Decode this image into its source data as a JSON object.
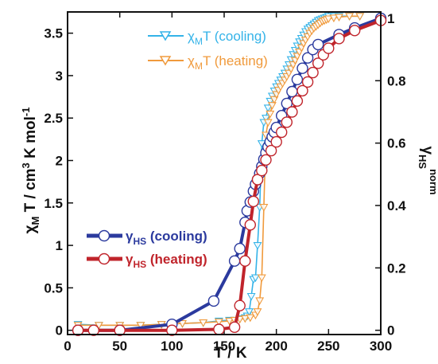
{
  "chart_data": {
    "type": "line",
    "x_axis": {
      "label_main": "T / K",
      "range": [
        0,
        300
      ],
      "ticks": [
        "0",
        "50",
        "100",
        "150",
        "200",
        "250",
        "300"
      ]
    },
    "y_left": {
      "label_chi": "χ",
      "label_M": "M",
      "label_main": " T / cm",
      "label_exp3": "3",
      "label_K": " K mol",
      "label_expm1": "-1",
      "range": [
        -0.05,
        3.75
      ],
      "ticks": [
        "0",
        "0.5",
        "1",
        "1.5",
        "2",
        "2.5",
        "3",
        "3.5"
      ]
    },
    "y_right": {
      "label_gamma": "γ",
      "label_sub": "HS",
      "label_sup": "norm",
      "range": [
        -0.0136,
        1.0204
      ],
      "ticks": [
        "0",
        "0.2",
        "0.4",
        "0.6",
        "0.8",
        "1"
      ]
    },
    "legend_top": [
      {
        "chi": "χ",
        "sub": "M",
        "rest": "T (cooling)",
        "color": "#34b3e8"
      },
      {
        "chi": "χ",
        "sub": "M",
        "rest": "T (heating)",
        "color": "#f09a3c"
      }
    ],
    "legend_bottom": [
      {
        "gamma": "γ",
        "sub": "HS",
        "rest": " (cooling)",
        "color": "#2b3a9e"
      },
      {
        "gamma": "γ",
        "sub": "HS",
        "rest": " (heating)",
        "color": "#c0242b"
      }
    ],
    "series": [
      {
        "name": "χMT (cooling)",
        "axis": "left",
        "color": "#34b3e8",
        "x": [
          10,
          30,
          50,
          70,
          90,
          110,
          130,
          145,
          155,
          160,
          165,
          170,
          172,
          174,
          176,
          178,
          180,
          182,
          184,
          186,
          188,
          190,
          192,
          194,
          196,
          198,
          200,
          202,
          204,
          206,
          208,
          210,
          212,
          214,
          216,
          218,
          220,
          222,
          224,
          226,
          228,
          230,
          232,
          234,
          236,
          238,
          240,
          242,
          244,
          246,
          248,
          250,
          255,
          260,
          270,
          280
        ],
        "y": [
          0.07,
          0.06,
          0.06,
          0.06,
          0.07,
          0.08,
          0.09,
          0.11,
          0.12,
          0.12,
          0.14,
          0.15,
          0.17,
          0.22,
          0.4,
          0.6,
          0.62,
          1.0,
          1.45,
          2.2,
          2.45,
          2.5,
          2.62,
          2.7,
          2.76,
          2.82,
          2.87,
          2.91,
          2.95,
          2.99,
          3.03,
          3.08,
          3.13,
          3.19,
          3.25,
          3.3,
          3.35,
          3.4,
          3.44,
          3.48,
          3.52,
          3.55,
          3.57,
          3.59,
          3.61,
          3.63,
          3.65,
          3.66,
          3.67,
          3.68,
          3.69,
          3.7,
          3.7,
          3.7,
          3.7,
          3.7
        ]
      },
      {
        "name": "χMT (heating)",
        "axis": "left",
        "color": "#f09a3c",
        "x": [
          10,
          30,
          50,
          70,
          90,
          110,
          130,
          145,
          155,
          160,
          165,
          170,
          175,
          180,
          182,
          184,
          186,
          188,
          190,
          192,
          194,
          196,
          198,
          200,
          202,
          204,
          206,
          208,
          210,
          212,
          214,
          216,
          218,
          220,
          222,
          224,
          226,
          228,
          230,
          232,
          234,
          236,
          238,
          240,
          242,
          244,
          246,
          248,
          250,
          255,
          260,
          270,
          280
        ],
        "y": [
          0.06,
          0.06,
          0.06,
          0.06,
          0.07,
          0.08,
          0.09,
          0.1,
          0.11,
          0.12,
          0.13,
          0.14,
          0.15,
          0.18,
          0.22,
          0.35,
          0.62,
          1.45,
          2.3,
          2.45,
          2.55,
          2.65,
          2.72,
          2.78,
          2.83,
          2.87,
          2.91,
          2.95,
          2.99,
          3.03,
          3.08,
          3.13,
          3.18,
          3.23,
          3.28,
          3.33,
          3.38,
          3.42,
          3.46,
          3.5,
          3.53,
          3.56,
          3.58,
          3.6,
          3.62,
          3.64,
          3.65,
          3.66,
          3.67,
          3.68,
          3.69,
          3.7,
          3.7
        ]
      },
      {
        "name": "γHS (cooling)",
        "axis": "right",
        "color": "#2b3a9e",
        "x": [
          10,
          50,
          100,
          140,
          160,
          165,
          170,
          172,
          175,
          178,
          180,
          182,
          184,
          186,
          188,
          190,
          192,
          194,
          196,
          198,
          200,
          205,
          210,
          215,
          220,
          225,
          230,
          235,
          240,
          260,
          275,
          300
        ],
        "y": [
          0.0,
          0.0,
          0.019,
          0.094,
          0.222,
          0.262,
          0.346,
          0.383,
          0.411,
          0.446,
          0.468,
          0.483,
          0.503,
          0.525,
          0.548,
          0.569,
          0.588,
          0.604,
          0.62,
          0.635,
          0.65,
          0.688,
          0.727,
          0.765,
          0.804,
          0.84,
          0.873,
          0.9,
          0.916,
          0.948,
          0.969,
          1.0
        ]
      },
      {
        "name": "γHS (heating)",
        "axis": "right",
        "color": "#c0242b",
        "x": [
          10,
          25,
          50,
          100,
          145,
          160,
          165,
          170,
          175,
          178,
          182,
          186,
          190,
          195,
          200,
          205,
          210,
          215,
          220,
          225,
          230,
          235,
          240,
          245,
          250,
          260,
          275,
          300
        ],
        "y": [
          0.0,
          0.0,
          0.0,
          0.0,
          0.003,
          0.01,
          0.079,
          0.222,
          0.338,
          0.413,
          0.483,
          0.512,
          0.546,
          0.576,
          0.604,
          0.635,
          0.667,
          0.7,
          0.735,
          0.768,
          0.796,
          0.826,
          0.856,
          0.883,
          0.904,
          0.935,
          0.961,
          0.993
        ]
      }
    ]
  }
}
